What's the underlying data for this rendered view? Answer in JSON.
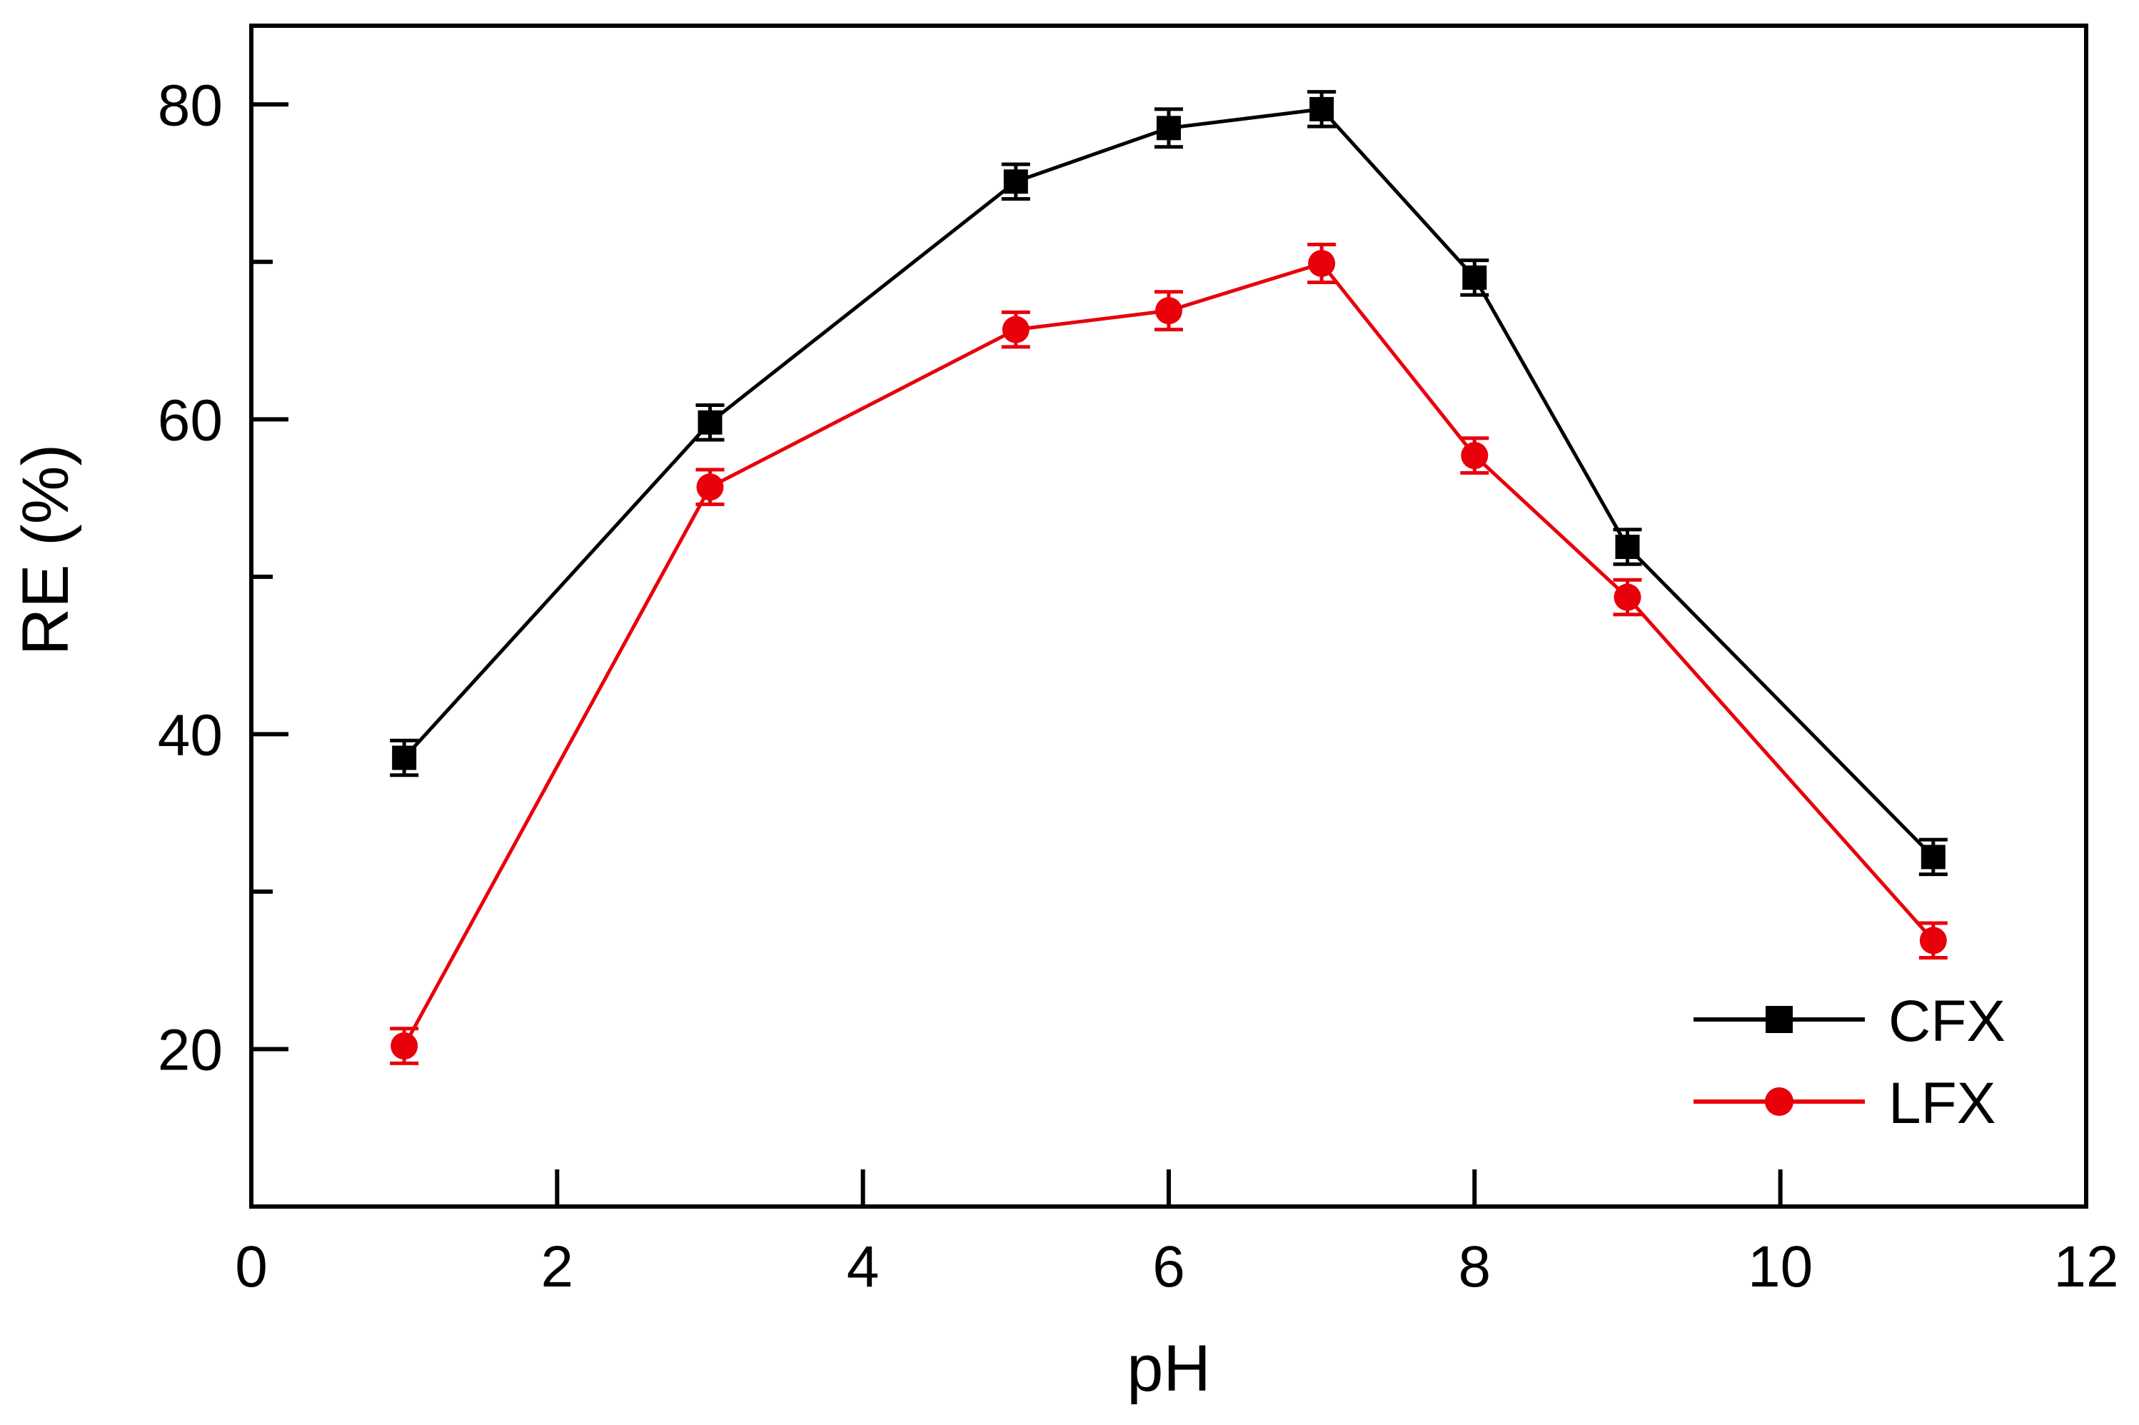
{
  "chart_data": {
    "type": "line",
    "title": "",
    "xlabel": "pH",
    "ylabel": "RE (%)",
    "xlim": [
      0,
      12
    ],
    "ylim": [
      10,
      85
    ],
    "xticks": [
      0,
      2,
      4,
      6,
      8,
      10,
      12
    ],
    "xtick_labels": [
      "0",
      "2",
      "4",
      "6",
      "8",
      "10",
      "12"
    ],
    "yticks": [
      20,
      30,
      40,
      50,
      60,
      70,
      80
    ],
    "ytick_labeled": [
      20,
      40,
      60,
      80
    ],
    "ytick_labels": [
      "20",
      "40",
      "60",
      "80"
    ],
    "grid": false,
    "legend_position": "bottom-right",
    "series": [
      {
        "name": "CFX",
        "color": "#000000",
        "marker": "square",
        "x": [
          1,
          3,
          5,
          6,
          7,
          8,
          9,
          11
        ],
        "y": [
          38.5,
          59.8,
          75.1,
          78.5,
          79.7,
          69.0,
          51.9,
          32.2
        ],
        "error": [
          1.1,
          1.1,
          1.1,
          1.2,
          1.1,
          1.1,
          1.1,
          1.1
        ]
      },
      {
        "name": "LFX",
        "color": "#e8000b",
        "marker": "circle",
        "x": [
          1,
          3,
          5,
          6,
          7,
          8,
          9,
          11
        ],
        "y": [
          20.2,
          55.7,
          65.7,
          66.9,
          69.9,
          57.7,
          48.7,
          26.9
        ],
        "error": [
          1.1,
          1.1,
          1.1,
          1.2,
          1.2,
          1.1,
          1.1,
          1.1
        ]
      }
    ]
  }
}
